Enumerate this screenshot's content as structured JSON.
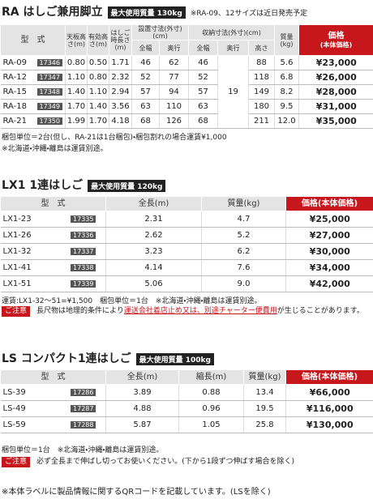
{
  "ra": {
    "title": "RA はしご兼用脚立",
    "badge": "最大使用質量 130kg",
    "announcement": "※RA-09、12サイズは近日発売予定",
    "headers": {
      "model": "型　式",
      "top_height": "天板高さ(m)",
      "effective_height": "有効高さ(m)",
      "ladder_length": "はしご時長さ(m)",
      "install": "設置寸法(外寸)(cm)",
      "install_width": "全幅",
      "install_depth": "奥行",
      "storage": "収納寸法(外寸)(cm)",
      "storage_width": "全幅",
      "storage_depth": "奥行",
      "storage_height": "高さ",
      "mass": "質量(kg)",
      "price": "価格",
      "price_note": "(本体価格)"
    },
    "storage_depth": "19",
    "rows": [
      [
        "RA-09",
        "17346",
        "0.80",
        "0.50",
        "1.71",
        "46",
        "62",
        "46",
        "88",
        "5.6",
        "¥23,000"
      ],
      [
        "RA-12",
        "17347",
        "1.10",
        "0.80",
        "2.32",
        "52",
        "77",
        "52",
        "118",
        "6.8",
        "¥26,000"
      ],
      [
        "RA-15",
        "17348",
        "1.40",
        "1.10",
        "2.94",
        "57",
        "94",
        "57",
        "149",
        "8.2",
        "¥28,000"
      ],
      [
        "RA-18",
        "17349",
        "1.70",
        "1.40",
        "3.56",
        "63",
        "110",
        "63",
        "180",
        "9.5",
        "¥31,000"
      ],
      [
        "RA-21",
        "17350",
        "1.99",
        "1.70",
        "4.18",
        "68",
        "126",
        "68",
        "211",
        "12.0",
        "¥35,000"
      ]
    ],
    "notes": [
      "梱包単位＝2台(但し、RA-21は1台梱包)・梱包割れの場合運賃¥1,000",
      "※北海道・沖縄・離島は運賃別途。"
    ]
  },
  "lx1": {
    "title": "LX1 1連はしご",
    "badge": "最大使用質量 120kg",
    "headers": {
      "model": "型　式",
      "length": "全長(m)",
      "mass": "質量(kg)",
      "price": "価格(本体価格)"
    },
    "rows": [
      [
        "LX1-23",
        "17335",
        "2.31",
        "4.7",
        "¥25,000"
      ],
      [
        "LX1-26",
        "17336",
        "2.62",
        "5.2",
        "¥27,000"
      ],
      [
        "LX1-32",
        "17337",
        "3.23",
        "6.2",
        "¥30,000"
      ],
      [
        "LX1-41",
        "17338",
        "4.14",
        "7.6",
        "¥34,000"
      ],
      [
        "LX1-51",
        "17339",
        "5.06",
        "9.0",
        "¥42,000"
      ]
    ],
    "note": "運賃:LX1-32〜51=¥1,500　梱包単位＝1台　※北海道・沖縄・離島は運賃別途。",
    "caution": {
      "tag": "ご注意",
      "pre": "長尺物は地理的条件により",
      "red": "運送会社着店止め又は、別途チャーター便費用",
      "post": "が生じることがあります。"
    }
  },
  "ls": {
    "title": "LS コンパクト1連はしご",
    "badge": "最大使用質量 100kg",
    "headers": {
      "model": "型　式",
      "length": "全長(m)",
      "shortened": "縮長(m)",
      "mass": "質量(kg)",
      "price": "価格(本体価格)"
    },
    "rows": [
      [
        "LS-39",
        "17286",
        "3.89",
        "0.88",
        "13.4",
        "¥66,000"
      ],
      [
        "LS-49",
        "17287",
        "4.88",
        "0.96",
        "19.5",
        "¥116,000"
      ],
      [
        "LS-59",
        "17288",
        "5.87",
        "1.05",
        "25.8",
        "¥130,000"
      ]
    ],
    "note": "梱包単位＝1台　※北海道・沖縄・離島は運賃別途。",
    "caution": {
      "tag": "ご注意",
      "text": "必ず全長まで伸ばし切ってお使いください。(下から1段ずつ伸ばす場合を除く)"
    }
  },
  "footer": "※本体ラベルに製品情報に関するQRコードを記載しています。(LSを除く)"
}
